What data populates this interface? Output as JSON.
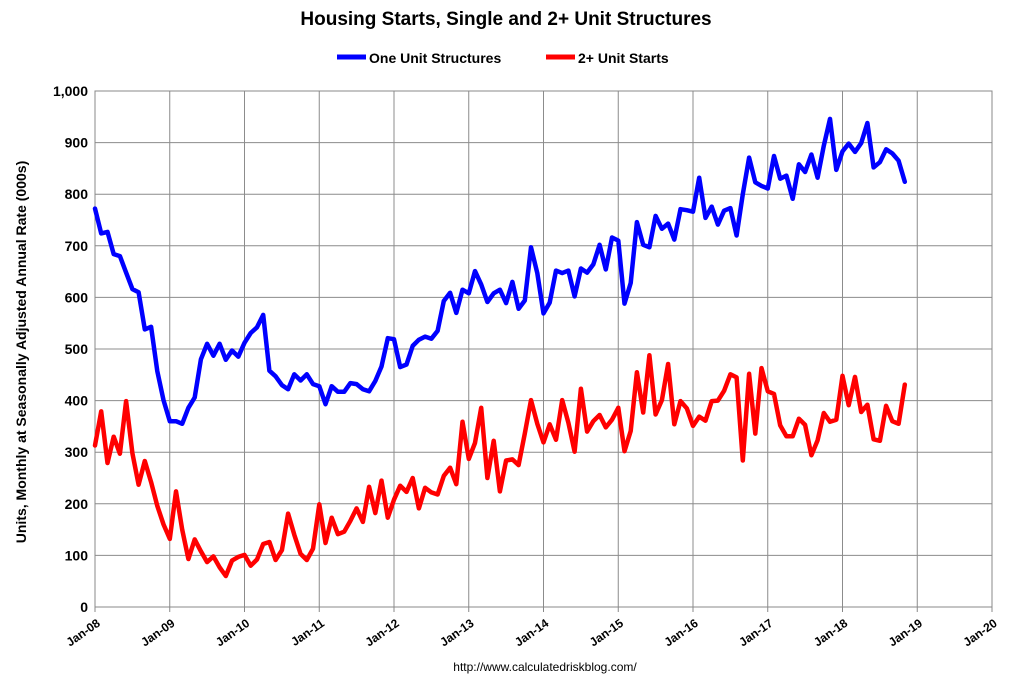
{
  "chart_data": {
    "type": "line",
    "title": "Housing Starts, Single and 2+ Unit Structures",
    "ylabel": "Units, Monthly at Seasonally Adjusted Annual Rate (000s)",
    "xlabel": "",
    "ylim": [
      0,
      1000
    ],
    "yticks": [
      "0",
      "100",
      "200",
      "300",
      "400",
      "500",
      "600",
      "700",
      "800",
      "900",
      "1,000"
    ],
    "xticks": [
      "Jan-08",
      "Jan-09",
      "Jan-10",
      "Jan-11",
      "Jan-12",
      "Jan-13",
      "Jan-14",
      "Jan-15",
      "Jan-16",
      "Jan-17",
      "Jan-18",
      "Jan-19",
      "Jan-20"
    ],
    "xlim": [
      "2008-01",
      "2020-01"
    ],
    "grid": true,
    "legend_position": "top",
    "source": "http://www.calculatedriskblog.com/",
    "series": [
      {
        "name": "One Unit Structures",
        "color": "#0000ff",
        "start": "2008-01",
        "values": [
          772,
          724,
          727,
          684,
          680,
          648,
          616,
          610,
          538,
          543,
          457,
          401,
          360,
          360,
          355,
          386,
          406,
          480,
          510,
          487,
          510,
          479,
          497,
          485,
          512,
          531,
          542,
          566,
          458,
          447,
          430,
          422,
          451,
          439,
          451,
          432,
          428,
          393,
          428,
          417,
          417,
          434,
          432,
          422,
          418,
          438,
          466,
          521,
          519,
          465,
          470,
          506,
          518,
          524,
          520,
          535,
          593,
          609,
          570,
          615,
          608,
          651,
          625,
          591,
          608,
          615,
          589,
          630,
          578,
          594,
          697,
          647,
          569,
          590,
          652,
          647,
          652,
          602,
          656,
          648,
          664,
          702,
          654,
          716,
          710,
          588,
          628,
          746,
          702,
          697,
          758,
          733,
          743,
          712,
          771,
          769,
          766,
          832,
          754,
          776,
          741,
          768,
          773,
          720,
          800,
          871,
          823,
          816,
          811,
          874,
          830,
          836,
          791,
          858,
          843,
          877,
          832,
          894,
          946,
          847,
          883,
          898,
          882,
          899,
          938,
          852,
          862,
          887,
          879,
          865,
          824
        ]
      },
      {
        "name": "2+ Unit Starts",
        "color": "#ff0000",
        "start": "2008-01",
        "values": [
          313,
          379,
          279,
          330,
          297,
          399,
          298,
          237,
          283,
          242,
          196,
          160,
          132,
          224,
          150,
          93,
          131,
          108,
          87,
          98,
          77,
          60,
          90,
          97,
          101,
          80,
          92,
          122,
          126,
          91,
          110,
          181,
          140,
          103,
          91,
          113,
          199,
          124,
          173,
          141,
          146,
          167,
          191,
          165,
          233,
          182,
          245,
          173,
          208,
          235,
          223,
          250,
          191,
          231,
          222,
          218,
          254,
          270,
          238,
          359,
          287,
          318,
          386,
          250,
          322,
          224,
          284,
          286,
          275,
          336,
          401,
          355,
          319,
          354,
          324,
          401,
          357,
          301,
          423,
          340,
          360,
          372,
          348,
          363,
          386,
          302,
          341,
          455,
          377,
          488,
          373,
          401,
          471,
          354,
          399,
          385,
          351,
          369,
          361,
          399,
          400,
          419,
          451,
          445,
          284,
          452,
          336,
          463,
          418,
          413,
          352,
          331,
          331,
          365,
          353,
          294,
          323,
          376,
          359,
          363,
          448,
          391,
          446,
          378,
          392,
          325,
          322,
          390,
          360,
          355,
          431
        ]
      }
    ]
  }
}
